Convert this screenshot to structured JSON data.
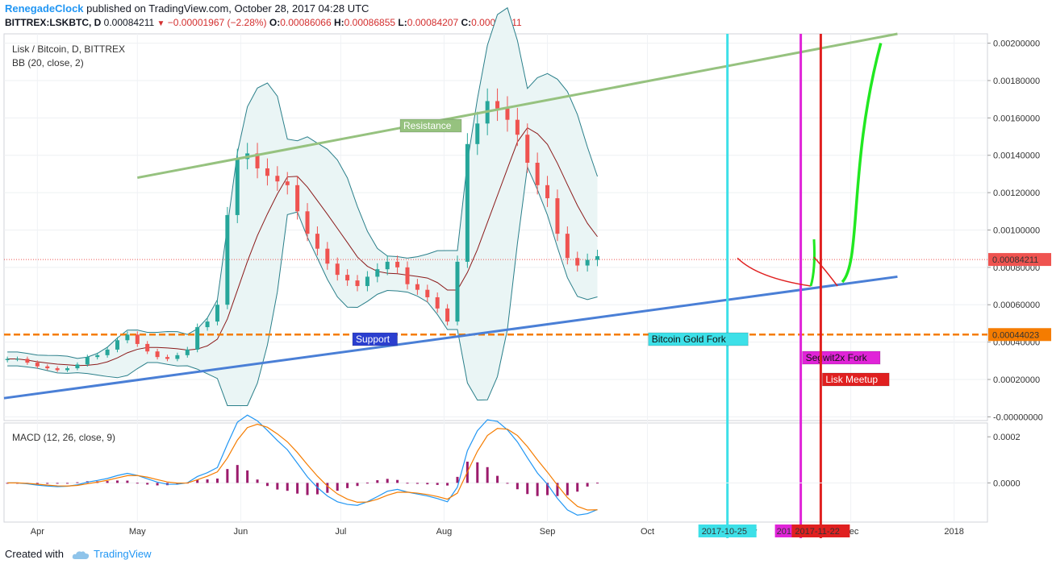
{
  "header": {
    "author": "RenegadeClock",
    "published": "published on TradingView.com, October 28, 2017 04:28 UTC",
    "symbol": "BITTREX:LSKBTC, D",
    "last": "0.00084211",
    "arrow": "▼",
    "change": "−0.00001967 (−2.28%)",
    "o_label": "O:",
    "o": "0.00086066",
    "h_label": "H:",
    "h": "0.00086855",
    "l_label": "L:",
    "l": "0.00084207",
    "c_label": "C:",
    "c": "0.00084211"
  },
  "footer": {
    "created": "Created with",
    "brand": "TradingView"
  },
  "colors": {
    "up": "#26a69a",
    "down": "#ef5350",
    "bb_band": "#2a7f8a",
    "bb_basis": "#8b1a1a",
    "bb_fill": "#eaf5f5",
    "resistance": "#96c27f",
    "support": "#4a7fd6",
    "support_level": "#f57c00",
    "macd": "#2196f3",
    "signal": "#f57c00",
    "hist": "#9c1b6c",
    "cyan": "#3de0e8",
    "magenta": "#e024d8",
    "red": "#e02020",
    "green": "#21e821"
  },
  "chart_data": {
    "type": "candlestick",
    "panel_title": "Lisk / Bitcoin, D, BITTREX",
    "indicator_title": "BB (20, close, 2)",
    "macd_title": "MACD (12, 26, close, 9)",
    "x_ticks": [
      "Apr",
      "May",
      "Jun",
      "Jul",
      "Aug",
      "Sep",
      "Oct",
      "Dec",
      "2018"
    ],
    "x_tick_partial": "ov",
    "ylim": [
      -2e-05,
      0.00205
    ],
    "y_ticks": [
      "0.00200000",
      "0.00180000",
      "0.00160000",
      "0.00140000",
      "0.00120000",
      "0.00100000",
      "0.00080000",
      "0.00060000",
      "0.00040000",
      "0.00020000",
      "-0.00000000"
    ],
    "macd_ylim": [
      -0.00017,
      0.00026
    ],
    "macd_ticks": [
      "0.0002",
      "0.0000"
    ],
    "price_labels": [
      {
        "value": 0.00084211,
        "text": "0.00084211"
      },
      {
        "value": 0.00044023,
        "text": "0.00044023"
      }
    ],
    "closes": {
      "start_date": "2017-03-23",
      "days_per_point": 3,
      "values": [
        0.00031,
        0.00031,
        0.00029,
        0.00027,
        0.00026,
        0.00025,
        0.00026,
        0.00028,
        0.00032,
        0.00033,
        0.00036,
        0.00041,
        0.00044,
        0.00039,
        0.00035,
        0.00032,
        0.00031,
        0.00033,
        0.00036,
        0.00048,
        0.00051,
        0.0006,
        0.00108,
        0.00138,
        0.00141,
        0.00133,
        0.00129,
        0.00126,
        0.00124,
        0.0011,
        0.00098,
        0.0009,
        0.00082,
        0.00076,
        0.00073,
        0.0007,
        0.00075,
        0.00079,
        0.00083,
        0.0008,
        0.00071,
        0.00068,
        0.00064,
        0.00058,
        0.00051,
        0.00083,
        0.00146,
        0.00157,
        0.00169,
        0.00165,
        0.00159,
        0.00151,
        0.00136,
        0.00124,
        0.00117,
        0.00098,
        0.00085,
        0.00081,
        0.00084,
        0.00086
      ]
    },
    "projection_path": [
      "2017-10-28",
      0.00085,
      "2017-11-19",
      0.0007,
      "2017-11-19",
      0.00095,
      "2017-11-27",
      0.0007,
      "2017-12-10",
      0.002
    ],
    "resistance_line": [
      "2017-05-01",
      0.00128,
      "2017-12-15",
      0.00205
    ],
    "support_line": [
      "2017-03-22",
      0.0001,
      "2017-12-15",
      0.00075
    ],
    "support_level": 0.00044023,
    "events": [
      {
        "name": "Bitcoin Gold Fork",
        "date": "2017-10-25",
        "label": "Bitcoin Gold Fork",
        "date_label": "2017-10-25"
      },
      {
        "name": "Segwit2x Fork",
        "date": "2017-11-16",
        "label": "Segwit2x Fork",
        "date_label": "2017-"
      },
      {
        "name": "Lisk Meetup",
        "date": "2017-11-22",
        "label": "Lisk Meetup",
        "date_label": "2017-11-22"
      }
    ],
    "annotations": {
      "resistance": "Resistance",
      "support": "Support"
    }
  }
}
